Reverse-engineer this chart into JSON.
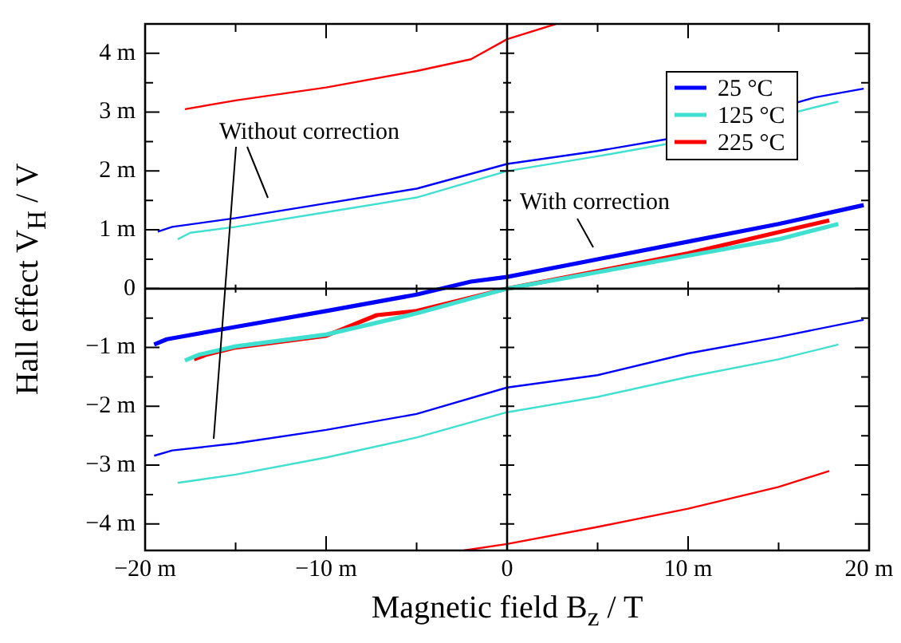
{
  "chart_data": {
    "type": "line",
    "xlabel": "Magnetic field B$_{z}$ / T",
    "ylabel": "Hall effect  V$_{H}$ / V",
    "xlim": [
      -20,
      20
    ],
    "xticks": [
      {
        "value": -20,
        "label": "−20 m"
      },
      {
        "value": -15,
        "label": null
      },
      {
        "value": -10,
        "label": "−10 m"
      },
      {
        "value": -5,
        "label": null
      },
      {
        "value": 0,
        "label": "0"
      },
      {
        "value": 5,
        "label": null
      },
      {
        "value": 10,
        "label": "10 m"
      },
      {
        "value": 15,
        "label": null
      },
      {
        "value": 20,
        "label": "20 m"
      }
    ],
    "ylim": [
      -4.45,
      4.5
    ],
    "yticks": [
      {
        "value": -4,
        "label": "−4 m"
      },
      {
        "value": -3.5,
        "label": null
      },
      {
        "value": -3,
        "label": "−3 m"
      },
      {
        "value": -2.5,
        "label": null
      },
      {
        "value": -2,
        "label": "−2 m"
      },
      {
        "value": -1.5,
        "label": null
      },
      {
        "value": -1,
        "label": "−1 m"
      },
      {
        "value": -0.5,
        "label": null
      },
      {
        "value": 0,
        "label": "0"
      },
      {
        "value": 0.5,
        "label": null
      },
      {
        "value": 1,
        "label": "1 m"
      },
      {
        "value": 1.5,
        "label": null
      },
      {
        "value": 2,
        "label": "2 m"
      },
      {
        "value": 2.5,
        "label": null
      },
      {
        "value": 3,
        "label": "3 m"
      },
      {
        "value": 3.5,
        "label": null
      },
      {
        "value": 4,
        "label": "4 m"
      }
    ],
    "legend": "top right",
    "marker": "none",
    "line_style": "solid",
    "annotations": [
      "Without correction",
      "With correction"
    ],
    "series": [
      {
        "name": "25 °C",
        "color": "#0000ff",
        "x": [
          -19.5,
          -18.8,
          -15,
          -10,
          -5,
          -2,
          0,
          5,
          10,
          15,
          19.7
        ],
        "values": [
          -0.95,
          -0.86,
          -0.65,
          -0.38,
          -0.1,
          0.12,
          0.2,
          0.5,
          0.8,
          1.1,
          1.42
        ]
      },
      {
        "name": "125 °C",
        "color": "#40e0d0",
        "x": [
          -17.8,
          -17,
          -15,
          -10,
          -5,
          0,
          5,
          10,
          15,
          18.3
        ],
        "values": [
          -1.22,
          -1.12,
          -0.98,
          -0.78,
          -0.42,
          0,
          0.28,
          0.56,
          0.84,
          1.1
        ]
      },
      {
        "name": "225 °C",
        "color": "#ff0000",
        "x": [
          -17.3,
          -16.6,
          -15,
          -10,
          -7.2,
          -5,
          0,
          5,
          10,
          15,
          17.8
        ],
        "values": [
          -1.2,
          -1.12,
          -1.0,
          -0.8,
          -0.45,
          -0.38,
          0,
          0.3,
          0.6,
          0.96,
          1.16
        ]
      },
      {
        "color": "#0000ff",
        "x": [
          -19.3,
          -18.5,
          -15,
          -10,
          -5,
          0,
          5,
          9,
          17,
          19.7
        ],
        "values": [
          0.97,
          1.05,
          1.2,
          1.45,
          1.7,
          2.12,
          2.34,
          2.55,
          3.25,
          3.4
        ]
      },
      {
        "color": "#40e0d0",
        "x": [
          -18.2,
          -17.5,
          -15,
          -10,
          -5,
          0,
          5,
          9,
          17.5,
          18.3
        ],
        "values": [
          0.84,
          0.95,
          1.05,
          1.3,
          1.55,
          2.0,
          2.25,
          2.47,
          3.12,
          3.18
        ]
      },
      {
        "color": "#ff0000",
        "x": [
          -17.8,
          -15,
          -10,
          -5,
          -2,
          0,
          2.7
        ],
        "values": [
          3.05,
          3.2,
          3.42,
          3.7,
          3.9,
          4.24,
          4.5
        ]
      },
      {
        "color": "#0000ff",
        "x": [
          -19.5,
          -18.5,
          -15,
          -10,
          -5,
          0,
          5,
          10,
          15,
          19.7
        ],
        "values": [
          -2.84,
          -2.75,
          -2.63,
          -2.4,
          -2.13,
          -1.68,
          -1.47,
          -1.1,
          -0.82,
          -0.53
        ]
      },
      {
        "color": "#40e0d0",
        "x": [
          -18.2,
          -15,
          -10,
          -5,
          0,
          5,
          10,
          15,
          18.3
        ],
        "values": [
          -3.3,
          -3.16,
          -2.87,
          -2.53,
          -2.1,
          -1.84,
          -1.5,
          -1.2,
          -0.95
        ]
      },
      {
        "color": "#ff0000",
        "x": [
          -2.4,
          0,
          5,
          10,
          15,
          17.8
        ],
        "values": [
          -4.45,
          -4.34,
          -4.05,
          -3.74,
          -3.37,
          -3.1
        ]
      }
    ]
  }
}
